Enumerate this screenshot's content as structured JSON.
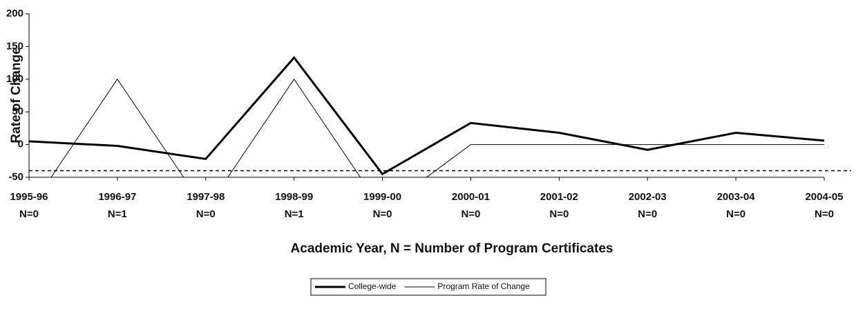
{
  "chart_data": {
    "type": "line",
    "y_label": "Rate of Change",
    "x_label": "Academic Year, N = Number of Program Certificates",
    "categories": [
      "1995-96",
      "1996-97",
      "1997-98",
      "1998-99",
      "1999-00",
      "2000-01",
      "2001-02",
      "2002-03",
      "2003-04",
      "2004-05"
    ],
    "category_sublabels": [
      "N=0",
      "N=1",
      "N=0",
      "N=1",
      "N=0",
      "N=0",
      "N=0",
      "N=0",
      "N=0",
      "N=0"
    ],
    "series": [
      {
        "name": "College-wide",
        "color": "#000000",
        "width": 3,
        "values": [
          5,
          -2,
          -22,
          133,
          -45,
          33,
          18,
          -8,
          18,
          6
        ]
      },
      {
        "name": "Program Rate of Change",
        "color": "#000000",
        "width": 1,
        "values": [
          -100,
          100,
          -100,
          100,
          -100,
          0,
          0,
          0,
          0,
          0
        ]
      }
    ],
    "reference_line": -40,
    "ylim": [
      -50,
      200
    ],
    "yticks": [
      -50,
      0,
      50,
      100,
      150,
      200
    ],
    "legend": "bottom"
  }
}
